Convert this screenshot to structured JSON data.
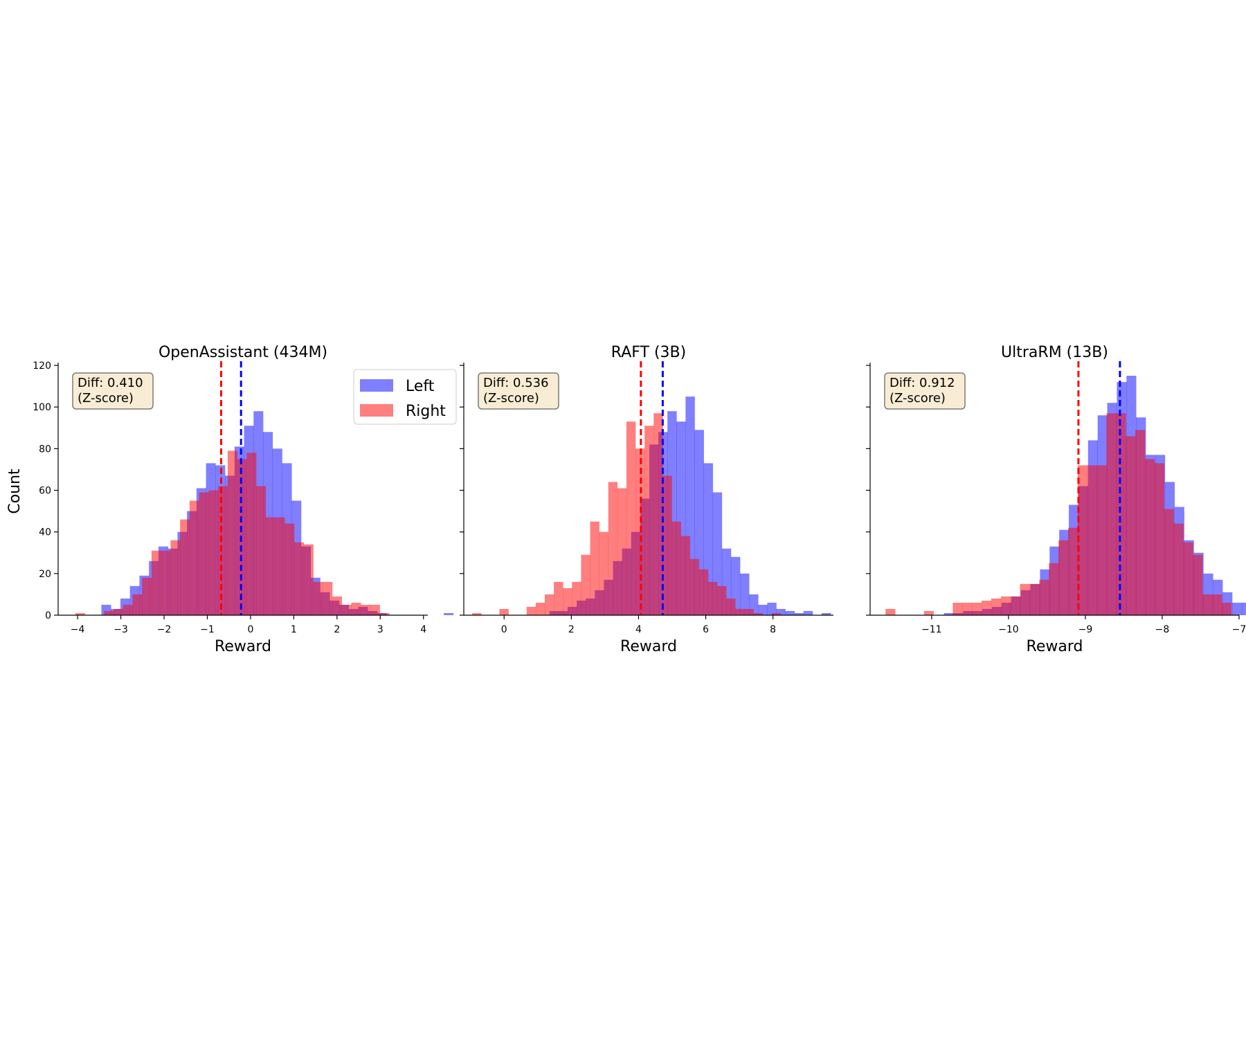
{
  "figure": {
    "ylabel": "Count",
    "legend": {
      "placement": "upper-right of first panel",
      "entries": [
        {
          "name": "Left",
          "color": "#7f7fff"
        },
        {
          "name": "Right",
          "color": "#ff7f7f"
        }
      ]
    },
    "colors": {
      "left_fill": "#0000ff",
      "right_fill": "#ff0000",
      "fill_opacity": 0.5,
      "left_mean_line": "#0000ff",
      "right_mean_line": "#ff0000",
      "annotation_bg": "#f8ecd4",
      "annotation_border": "#7a7a7a"
    }
  },
  "chart_data": [
    {
      "type": "histogram",
      "title": "OpenAssistant (434M)",
      "xlabel": "Reward",
      "ylabel": "Count",
      "xlim": [
        -4.45,
        4.1
      ],
      "ylim": [
        0,
        120
      ],
      "xticks": [
        -4,
        -3,
        -2,
        -1,
        0,
        1,
        2,
        3,
        4
      ],
      "xtick_labels": [
        "−4",
        "−3",
        "−2",
        "−1",
        "0",
        "1",
        "2",
        "3",
        "4"
      ],
      "yticks": [
        0,
        20,
        40,
        60,
        80,
        100,
        120
      ],
      "ytick_labels": [
        "0",
        "20",
        "40",
        "60",
        "80",
        "100",
        "120"
      ],
      "annotation": [
        "Diff: 0.410",
        "(Z-score)"
      ],
      "means": {
        "Left": -0.22,
        "Right": -0.68
      },
      "series": [
        {
          "name": "Left",
          "bin_start": -3.45,
          "bin_width": 0.22,
          "counts": [
            5,
            3,
            8,
            14,
            19,
            26,
            33,
            32,
            40,
            50,
            61,
            73,
            72,
            67,
            81,
            91,
            98,
            88,
            80,
            73,
            55,
            33,
            18,
            11,
            7,
            5,
            3,
            4,
            2,
            1,
            0,
            0,
            0,
            0,
            0,
            0,
            1
          ]
        },
        {
          "name": "Right",
          "bin_start": -4.05,
          "bin_width": 0.22,
          "counts": [
            1,
            0,
            0,
            2,
            3,
            5,
            10,
            18,
            31,
            31,
            36,
            46,
            55,
            59,
            60,
            62,
            79,
            75,
            78,
            62,
            47,
            47,
            44,
            35,
            34,
            16,
            16,
            9,
            5,
            6,
            5,
            5,
            1
          ]
        }
      ]
    },
    {
      "type": "histogram",
      "title": "RAFT (3B)",
      "xlabel": "Reward",
      "ylabel": "Count",
      "xlim": [
        -1.2,
        9.8
      ],
      "ylim": [
        0,
        120
      ],
      "xticks": [
        0,
        2,
        4,
        6,
        8
      ],
      "xtick_labels": [
        "0",
        "2",
        "4",
        "6",
        "8"
      ],
      "yticks": [
        0,
        20,
        40,
        60,
        80,
        100,
        120
      ],
      "annotation": [
        "Diff: 0.536",
        "(Z-score)"
      ],
      "means": {
        "Left": 4.72,
        "Right": 4.07
      },
      "series": [
        {
          "name": "Left",
          "bin_start": 1.35,
          "bin_width": 0.27,
          "counts": [
            2,
            2,
            4,
            7,
            8,
            12,
            17,
            26,
            32,
            40,
            56,
            82,
            88,
            98,
            93,
            105,
            89,
            73,
            59,
            32,
            28,
            20,
            10,
            5,
            6,
            3,
            2,
            1,
            2,
            0,
            1
          ]
        },
        {
          "name": "Right",
          "bin_start": -0.95,
          "bin_width": 0.27,
          "counts": [
            1,
            0,
            0,
            3,
            0,
            0,
            4,
            6,
            10,
            16,
            13,
            16,
            29,
            45,
            40,
            64,
            61,
            93,
            80,
            91,
            97,
            67,
            45,
            38,
            27,
            22,
            16,
            14,
            8,
            3,
            3,
            1,
            0,
            1
          ]
        }
      ]
    },
    {
      "type": "histogram",
      "title": "UltraRM (13B)",
      "xlabel": "Reward",
      "ylabel": "Count",
      "xlim": [
        -11.8,
        -7.0
      ],
      "ylim": [
        0,
        120
      ],
      "xticks": [
        -11,
        -10,
        -9,
        -8,
        -7
      ],
      "xtick_labels": [
        "−11",
        "−10",
        "−9",
        "−8",
        "−7"
      ],
      "yticks": [
        0,
        20,
        40,
        60,
        80,
        100,
        120
      ],
      "annotation": [
        "Diff: 0.912",
        "(Z-score)"
      ],
      "means": {
        "Left": -8.55,
        "Right": -9.09
      },
      "series": [
        {
          "name": "Left",
          "bin_start": -10.84,
          "bin_width": 0.125,
          "counts": [
            1,
            1,
            2,
            2,
            3,
            4,
            6,
            9,
            12,
            15,
            22,
            33,
            41,
            53,
            62,
            84,
            96,
            102,
            112,
            115,
            95,
            77,
            77,
            64,
            52,
            36,
            30,
            20,
            17,
            11,
            6,
            6,
            4,
            6
          ]
        },
        {
          "name": "Right",
          "bin_start": -11.6,
          "bin_width": 0.125,
          "counts": [
            3,
            0,
            0,
            0,
            2,
            0,
            0,
            6,
            6,
            6,
            7,
            8,
            9,
            9,
            15,
            15,
            17,
            25,
            36,
            42,
            72,
            72,
            72,
            97,
            97,
            86,
            89,
            75,
            73,
            51,
            44,
            35,
            29,
            10,
            10,
            6
          ]
        }
      ]
    }
  ]
}
